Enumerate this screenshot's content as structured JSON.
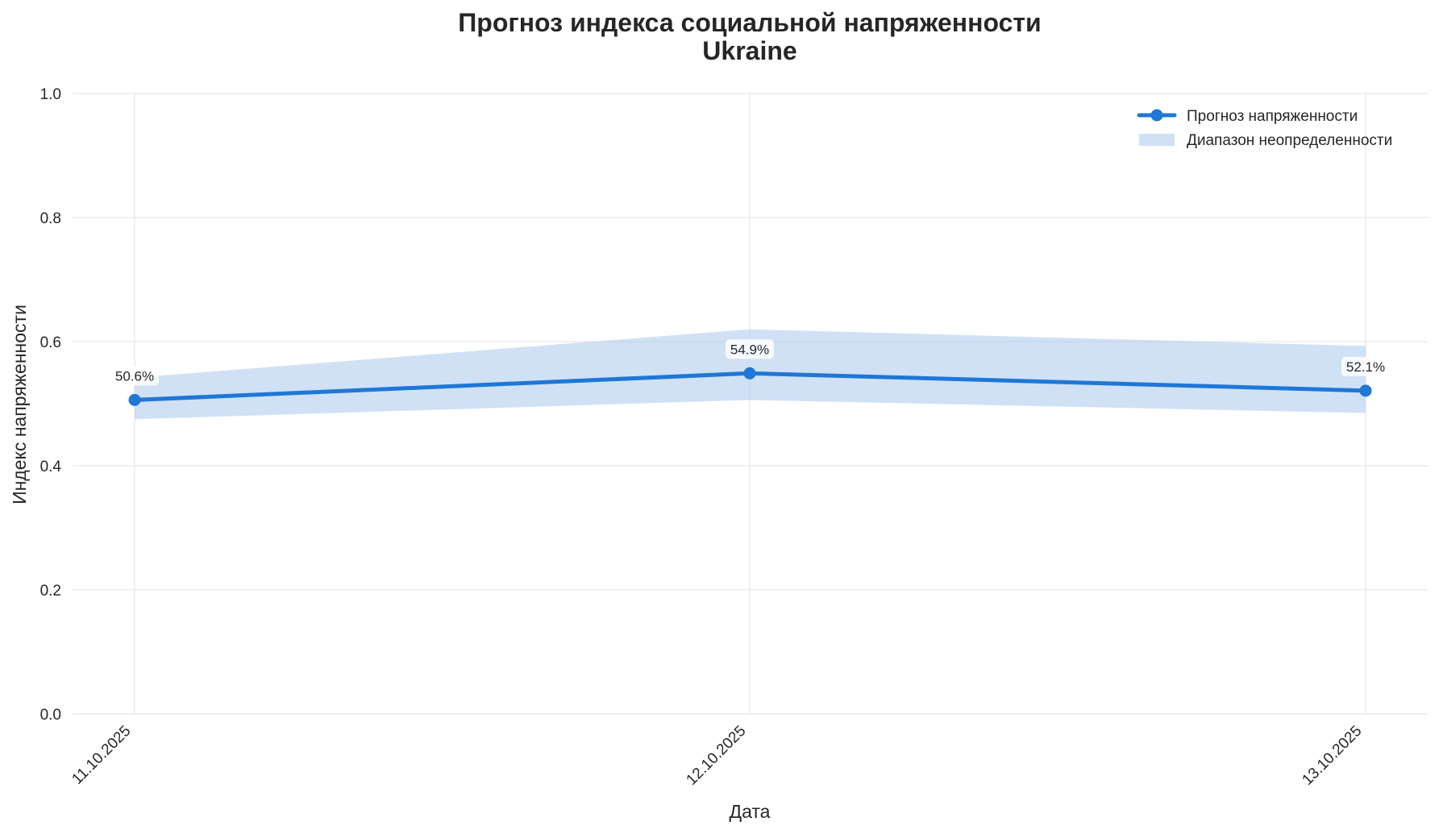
{
  "chart_data": {
    "type": "line",
    "title": "Прогноз индекса социальной напряженности",
    "subtitle": "Ukraine",
    "xlabel": "Дата",
    "ylabel": "Индекс напряженности",
    "categories": [
      "11.10.2025",
      "12.10.2025",
      "13.10.2025"
    ],
    "ylim": [
      0,
      1
    ],
    "y_ticks": [
      "0.0",
      "0.2",
      "0.4",
      "0.6",
      "0.8",
      "1.0"
    ],
    "y_tick_values": [
      0,
      0.2,
      0.4,
      0.6,
      0.8,
      1.0
    ],
    "grid": true,
    "legend_position": "top-right",
    "series": [
      {
        "name": "Прогноз напряженности",
        "values": [
          0.506,
          0.549,
          0.521
        ],
        "data_labels": [
          "50.6%",
          "54.9%",
          "52.1%"
        ],
        "color": "#1f77d6"
      }
    ],
    "band": {
      "name": "Диапазон неопределенности",
      "lower": [
        0.475,
        0.506,
        0.485
      ],
      "upper": [
        0.542,
        0.62,
        0.593
      ],
      "color": "#a9c8ef"
    }
  }
}
